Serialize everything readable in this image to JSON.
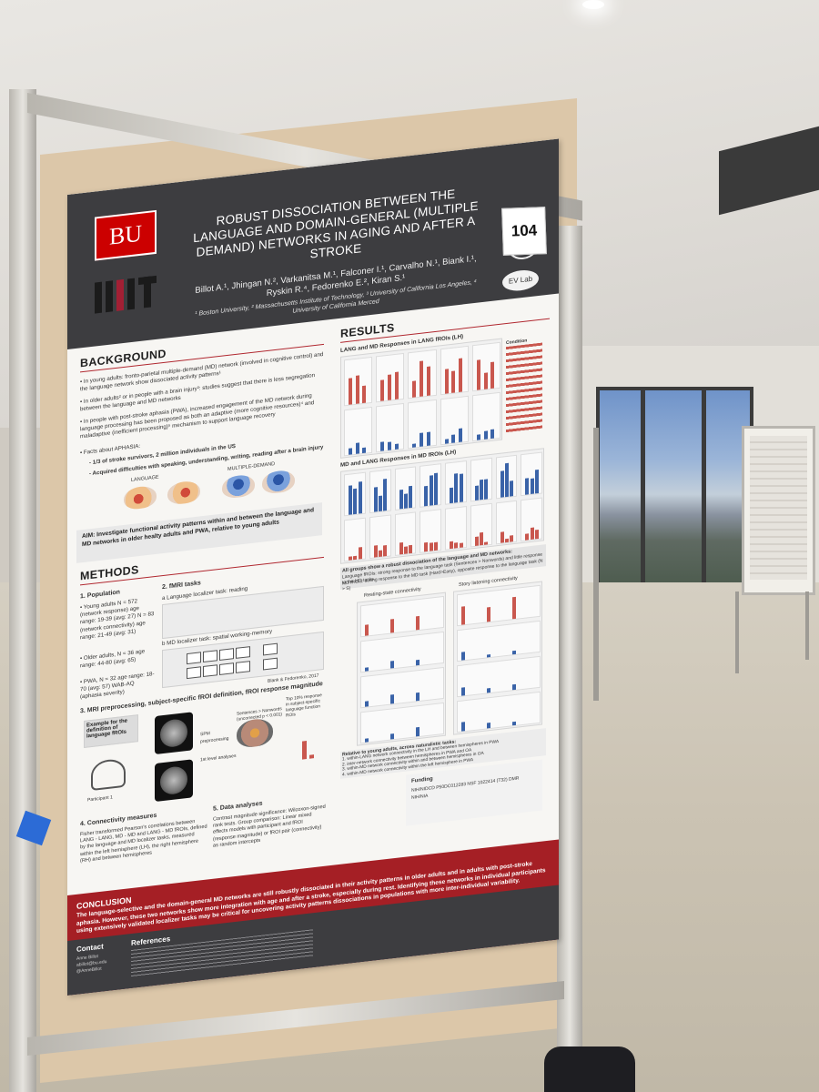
{
  "poster_number": "104",
  "header": {
    "bu_logo": "BU",
    "title": "ROBUST DISSOCIATION BETWEEN THE LANGUAGE AND DOMAIN-GENERAL (MULTIPLE DEMAND) NETWORKS IN AGING AND AFTER A STROKE",
    "authors": "Billot A.¹, Jhingan N.², Varkanitsa M.¹, Falconer I.¹, Carvalho N.¹, Biank I.¹, Ryskin R.⁴, Fedorenko E.², Kiran S.¹",
    "affiliations": "¹ Boston University, ² Massachusetts Institute of Technology, ³ University of California Los Angeles, ⁴ University of California Merced",
    "lab_logo": "EV Lab"
  },
  "background": {
    "heading": "BACKGROUND",
    "p1": "• In young adults: fronto-parietal multiple-demand (MD) network (involved in cognitive control) and the language network show dissociated activity patterns¹",
    "p2": "• In older adults² or in people with a brain injury³: studies suggest that there is less segregation between the language and MD networks",
    "p3": "• In people with post-stroke aphasia (PWA), increased engagement of the MD network during language processing has been proposed as both an adaptive (more cognitive resources)⁴ and maladaptive (inefficient processing)⁵ mechanism to support language recovery",
    "facts_title": "• Facts about APHASIA:",
    "fact1": "- 1/3 of stroke survivors, 2 million individuals in the US",
    "fact2": "- Acquired difficulties with speaking, understanding, writing, reading after a brain injury",
    "label_language": "LANGUAGE",
    "label_md": "MULTIPLE-DEMAND"
  },
  "aim": "AIM: Investigate functional activity patterns within and between the language and MD networks in older healty adults and PWA, relative to young adults",
  "methods": {
    "heading": "METHODS",
    "population_title": "1. Population",
    "young": "• Young adults N = 572 (network response) age range: 19-39 (avg: 27) N = 83 (network connectivity) age range: 21-49 (avg: 31)",
    "older": "• Older adults, N = 36 age range: 44-80 (avg: 65)",
    "pwa": "• PWA, N = 32 age range: 18-70 (avg: 57) WAB-AQ (aphasia severity)",
    "fmri_title": "2. fMRI tasks",
    "task_a": "a Language localizer task: reading",
    "task_b": "b MD localizer task: spatial working-memory",
    "citation": "Blank & Fedorenko, 2017",
    "mri_title": "3. MRI preprocessing, subject-specific fROI definition, fROI response magnitude",
    "example_label": "Example for the definition of language fROIs",
    "participant": "Participant 1",
    "spm": "SPM preprocessing",
    "first_level": "1st level analyses",
    "sentences": "Sentences > Nonwords (uncorrected p < 0.001)",
    "top10": "Top 10% response in subject-specific language function ROIs",
    "conn_title": "4. Connectivity measures",
    "conn_text": "Fisher transformed Pearson's correlations between LANG - LANG, MD - MD and LANG - MD fROIs, defined by the language and MD localizer tasks, measured within the left hemisphere (LH), the right hemisphere (RH) and between hemispheres",
    "data_title": "5. Data analyses",
    "data_text": "Contrast magnitude significance: Wilcoxon-signed rank tests. Group comparison: Linear mixed effects models with participant and fROI (response magnitude) or fROI pair (connectivity) as random intercepts"
  },
  "results": {
    "heading": "RESULTS",
    "chart1_title": "LANG and MD Responses in LANG fROIs (LH)",
    "chart2_title": "MD and LANG Responses in MD fROIs (LH)",
    "summary1": "All groups show a robust dissociation of the language and MD networks:",
    "summary2": "Language fROIs: strong response to the language task (Sentences > Nonwords) and little response to the MD tasks",
    "summary3": "MD fROIs: strong response to the MD task (Hard>Easy), opposite response to the language task (N > S)",
    "panel_left": "Resting-state connectivity",
    "panel_right": "Story listening connectivity",
    "y_label": "Mean correlation coefficient",
    "legend_title": "Condition",
    "groups": [
      "YA",
      "OA",
      "PWA"
    ],
    "relative_title": "Relative to young adults, across naturalistic tasks:",
    "rel1": "1. within-LANG network connectivity in the LH and between hemispheres in PWA",
    "rel2": "2. inter-network connectivity between hemispheres in PWA and OA",
    "rel3": "3. within-MD network connectivity within and between hemispheres in OA",
    "rel4": "4. within-MD network connectivity within the left hemisphere in PWA"
  },
  "conclusion": {
    "heading": "CONCLUSION",
    "text": "The language-selective and the domain-general MD networks are still robustly dissociated in their activity patterns in older adults and in adults with post-stroke aphasia. However, these two networks show more integration with age and after a stroke, especially during rest. Identifying these networks in individual participants using extensively validated localizer tasks may be critical for uncovering activity patterns dissociations in populations with more inter-individual variability."
  },
  "footer": {
    "contact_title": "Contact",
    "contact_name": "Anne Billot",
    "contact_email": "abillot@bu.edu",
    "contact_handle": "@AnneBillot",
    "references_title": "References",
    "funding_title": "Funding",
    "funding_text": "NIH/NIDCD P50DC012283 NSF 1022414 (T32) DMR NIH/NIA"
  },
  "colors": {
    "bu_red": "#cc0000",
    "poster_red": "#a51f25",
    "header_gray": "#3d3d40",
    "blue_bar": "#3a63a8",
    "red_bar": "#c9574e"
  }
}
